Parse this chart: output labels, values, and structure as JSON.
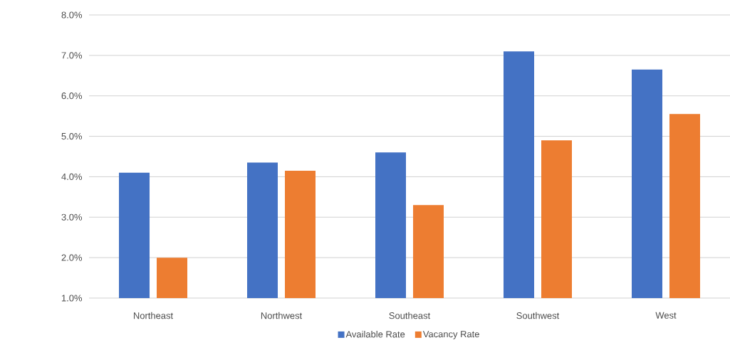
{
  "chart_data": {
    "type": "bar",
    "categories": [
      "Northeast",
      "Northwest",
      "Southeast",
      "Southwest",
      "West"
    ],
    "series": [
      {
        "name": "Available Rate",
        "color": "#4472c4",
        "values": [
          4.1,
          4.35,
          4.6,
          7.1,
          6.65
        ]
      },
      {
        "name": "Vacancy Rate",
        "color": "#ed7d31",
        "values": [
          2.0,
          4.15,
          3.3,
          4.9,
          5.55
        ]
      }
    ],
    "ylim": [
      1,
      8
    ],
    "yticks": [
      {
        "value": 1,
        "label": "1.0%"
      },
      {
        "value": 2,
        "label": "2.0%"
      },
      {
        "value": 3,
        "label": "3.0%"
      },
      {
        "value": 4,
        "label": "4.0%"
      },
      {
        "value": 5,
        "label": "5.0%"
      },
      {
        "value": 6,
        "label": "6.0%"
      },
      {
        "value": 7,
        "label": "7.0%"
      },
      {
        "value": 8,
        "label": "8.0%"
      }
    ],
    "grid": "y",
    "legend": "bottom"
  }
}
